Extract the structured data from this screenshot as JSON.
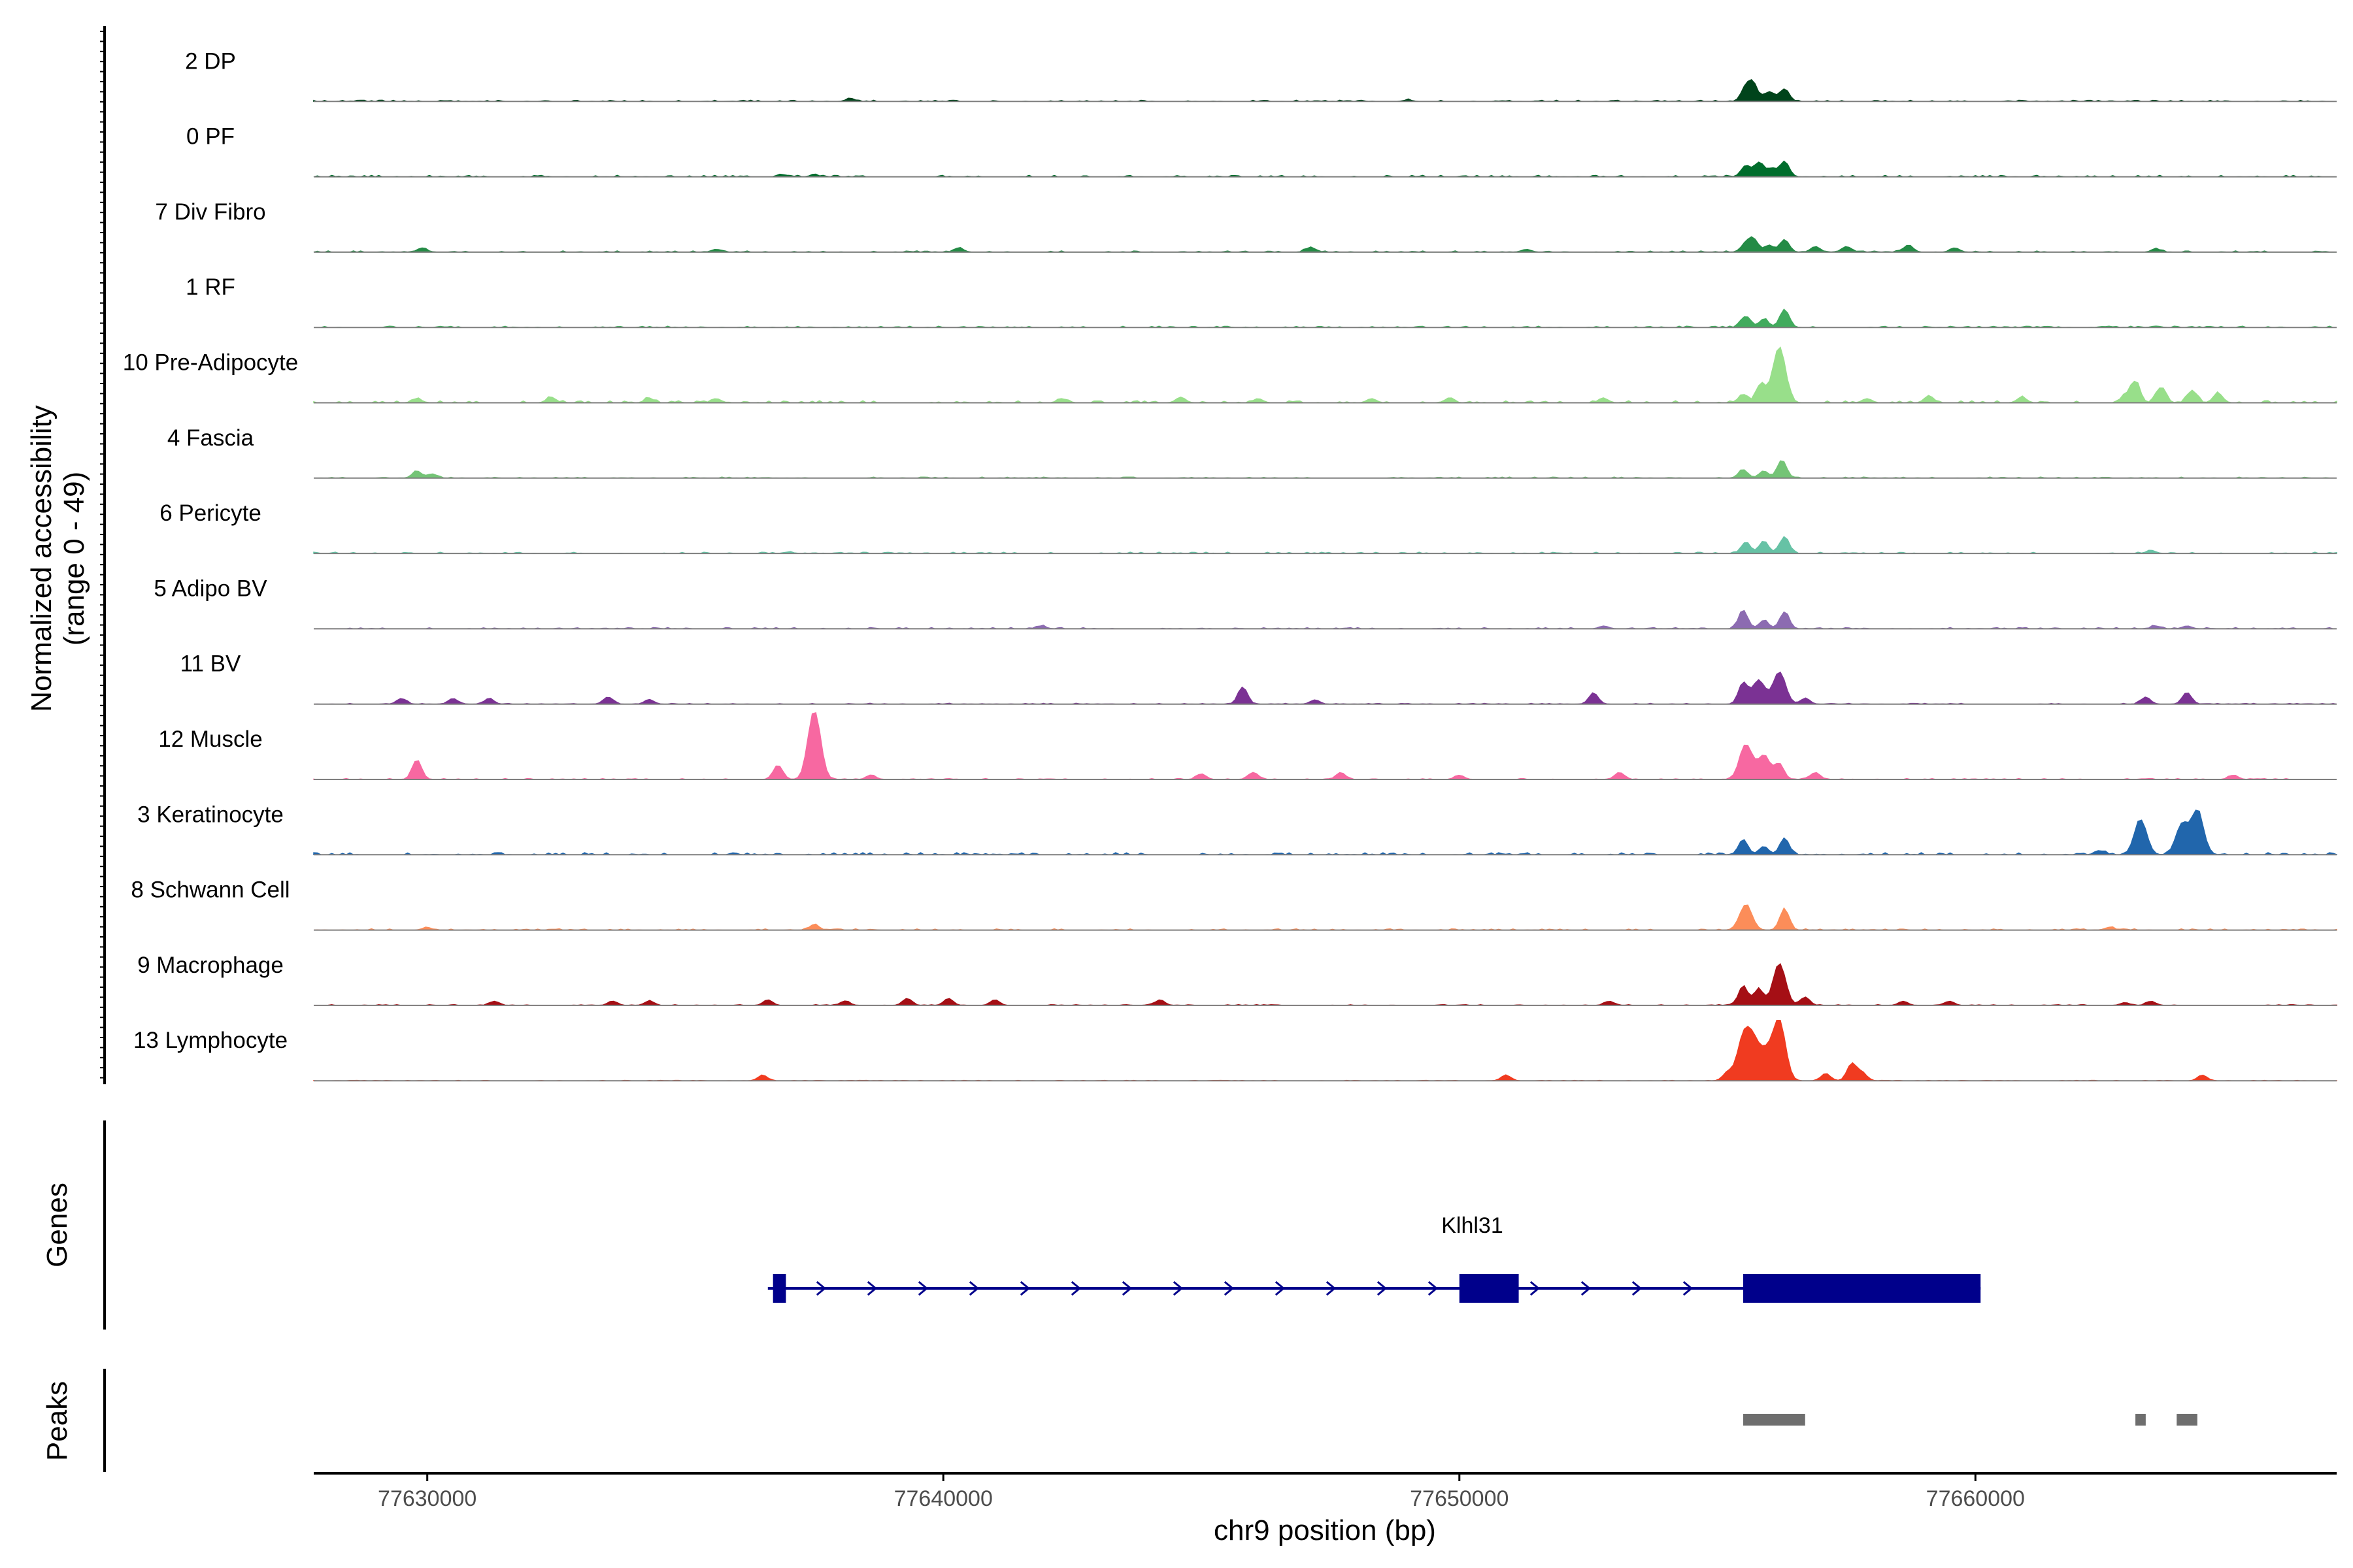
{
  "chart_data": {
    "type": "area",
    "title": "",
    "ylabel": "Normalized accessibility",
    "ylabel_range": "(range 0 - 49)",
    "yrange": [
      0,
      49
    ],
    "xlabel": "chr9 position (bp)",
    "xlim": [
      77627800,
      77667000
    ],
    "xticks": [
      77630000,
      77640000,
      77650000,
      77660000
    ],
    "xtick_labels": [
      "77630000",
      "77640000",
      "77650000",
      "77660000"
    ],
    "genes_label": "Genes",
    "peaks_label": "Peaks",
    "tracks": [
      {
        "name": "2 DP",
        "color": "#00441b",
        "peaks": [
          [
            77655550,
            10
          ],
          [
            77655700,
            11
          ],
          [
            77656000,
            7
          ],
          [
            77656300,
            9
          ],
          [
            77638200,
            2
          ],
          [
            77649000,
            1
          ]
        ],
        "noise": 0.3
      },
      {
        "name": "0 PF",
        "color": "#006d2c",
        "peaks": [
          [
            77655550,
            8
          ],
          [
            77655800,
            10
          ],
          [
            77656050,
            6
          ],
          [
            77656300,
            11
          ],
          [
            77636900,
            1.5
          ],
          [
            77637500,
            1.2
          ]
        ],
        "noise": 0.35
      },
      {
        "name": "7 Div Fibro",
        "color": "#238b45",
        "peaks": [
          [
            77655550,
            6
          ],
          [
            77655700,
            8
          ],
          [
            77656000,
            5
          ],
          [
            77656300,
            9
          ],
          [
            77656900,
            4
          ],
          [
            77657500,
            4
          ],
          [
            77658700,
            5
          ],
          [
            77659600,
            3
          ],
          [
            77629900,
            3
          ],
          [
            77635600,
            2
          ],
          [
            77640300,
            3
          ],
          [
            77647100,
            3
          ],
          [
            77651300,
            2
          ],
          [
            77663500,
            2
          ]
        ],
        "noise": 0.3
      },
      {
        "name": "1 RF",
        "color": "#41ab5d",
        "peaks": [
          [
            77655550,
            8
          ],
          [
            77655900,
            6
          ],
          [
            77656300,
            13
          ],
          [
            77663500,
            1
          ]
        ],
        "noise": 0.3
      },
      {
        "name": "10 Pre-Adipocyte",
        "color": "#98df8a",
        "peaks": [
          [
            77656200,
            40
          ],
          [
            77655850,
            14
          ],
          [
            77655500,
            6
          ],
          [
            77663100,
            15
          ],
          [
            77663600,
            11
          ],
          [
            77664200,
            9
          ],
          [
            77664700,
            7
          ],
          [
            77662900,
            5
          ],
          [
            77629800,
            3
          ],
          [
            77632400,
            4
          ],
          [
            77634300,
            3
          ],
          [
            77635600,
            3
          ],
          [
            77642300,
            3
          ],
          [
            77644600,
            4
          ],
          [
            77646100,
            3
          ],
          [
            77648300,
            3
          ],
          [
            77649800,
            3
          ],
          [
            77652800,
            3
          ],
          [
            77657900,
            3
          ],
          [
            77659100,
            5
          ],
          [
            77660900,
            4
          ]
        ],
        "noise": 0.5
      },
      {
        "name": "4 Fascia",
        "color": "#74c476",
        "peaks": [
          [
            77655500,
            6
          ],
          [
            77655900,
            5
          ],
          [
            77656250,
            13
          ],
          [
            77629800,
            5
          ],
          [
            77630100,
            3
          ]
        ],
        "noise": 0.25
      },
      {
        "name": "6 Pericyte",
        "color": "#66c2a5",
        "peaks": [
          [
            77655550,
            8
          ],
          [
            77655900,
            9
          ],
          [
            77656300,
            12
          ],
          [
            77663400,
            2
          ],
          [
            77637000,
            1
          ]
        ],
        "noise": 0.3
      },
      {
        "name": "5 Adipo BV",
        "color": "#8c6bb1",
        "peaks": [
          [
            77655500,
            13
          ],
          [
            77655900,
            6
          ],
          [
            77656300,
            12
          ],
          [
            77663500,
            2
          ],
          [
            77664100,
            2
          ],
          [
            77641900,
            2
          ],
          [
            77652800,
            2
          ]
        ],
        "noise": 0.3
      },
      {
        "name": "11 BV",
        "color": "#7b3294",
        "peaks": [
          [
            77655500,
            15
          ],
          [
            77655800,
            17
          ],
          [
            77656200,
            23
          ],
          [
            77645800,
            12
          ],
          [
            77652600,
            8
          ],
          [
            77663300,
            5
          ],
          [
            77664100,
            8
          ],
          [
            77629500,
            4
          ],
          [
            77630500,
            4
          ],
          [
            77631200,
            4
          ],
          [
            77633500,
            5
          ],
          [
            77634300,
            3
          ],
          [
            77647200,
            3
          ],
          [
            77656700,
            4
          ]
        ],
        "noise": 0.2
      },
      {
        "name": "12 Muscle",
        "color": "#f768a1",
        "peaks": [
          [
            77637500,
            49
          ],
          [
            77636800,
            10
          ],
          [
            77629800,
            14
          ],
          [
            77655550,
            25
          ],
          [
            77655900,
            17
          ],
          [
            77656200,
            11
          ],
          [
            77656900,
            5
          ],
          [
            77646000,
            5
          ],
          [
            77645000,
            4
          ],
          [
            77647700,
            5
          ],
          [
            77638600,
            3
          ],
          [
            77650000,
            3
          ],
          [
            77653100,
            5
          ],
          [
            77665000,
            3
          ]
        ],
        "noise": 0.2
      },
      {
        "name": "3 Keratinocyte",
        "color": "#2166ac",
        "peaks": [
          [
            77663200,
            25
          ],
          [
            77664300,
            31
          ],
          [
            77664000,
            21
          ],
          [
            77655500,
            11
          ],
          [
            77656300,
            12
          ],
          [
            77655900,
            6
          ],
          [
            77662400,
            3
          ]
        ],
        "noise": 0.5
      },
      {
        "name": "8 Schwann Cell",
        "color": "#fc8d59",
        "peaks": [
          [
            77655550,
            18
          ],
          [
            77656300,
            15
          ],
          [
            77637500,
            4
          ],
          [
            77630000,
            1.5
          ],
          [
            77662600,
            2
          ]
        ],
        "noise": 0.3
      },
      {
        "name": "9 Macrophage",
        "color": "#a50f15",
        "peaks": [
          [
            77656200,
            30
          ],
          [
            77655500,
            14
          ],
          [
            77655800,
            12
          ],
          [
            77656700,
            6
          ],
          [
            77639300,
            5
          ],
          [
            77640100,
            5
          ],
          [
            77641000,
            4
          ],
          [
            77644200,
            4
          ],
          [
            77636600,
            4
          ],
          [
            77631300,
            3
          ],
          [
            77633600,
            3
          ],
          [
            77634300,
            3
          ],
          [
            77638100,
            3
          ],
          [
            77652900,
            3
          ],
          [
            77658600,
            3
          ],
          [
            77659500,
            3
          ],
          [
            77662900,
            2
          ],
          [
            77663400,
            3
          ]
        ],
        "noise": 0.2
      },
      {
        "name": "13 Lymphocyte",
        "color": "#f03b20",
        "peaks": [
          [
            77656200,
            42
          ],
          [
            77655500,
            29
          ],
          [
            77655700,
            25
          ],
          [
            77655950,
            18
          ],
          [
            77636500,
            4
          ],
          [
            77650900,
            4
          ],
          [
            77657600,
            12
          ],
          [
            77657100,
            5
          ],
          [
            77657800,
            6
          ],
          [
            77664400,
            4
          ],
          [
            77655200,
            6
          ]
        ],
        "noise": 0.1
      }
    ],
    "gene": {
      "name": "Klhl31",
      "strand": "+",
      "start": 77636600,
      "end": 77660100,
      "exons": [
        [
          77636700,
          77636950
        ],
        [
          77650000,
          77651150
        ],
        [
          77655500,
          77660100
        ]
      ]
    },
    "peak_regions": [
      [
        77655500,
        77656700
      ],
      [
        77663100,
        77663300
      ],
      [
        77663900,
        77664300
      ]
    ]
  }
}
